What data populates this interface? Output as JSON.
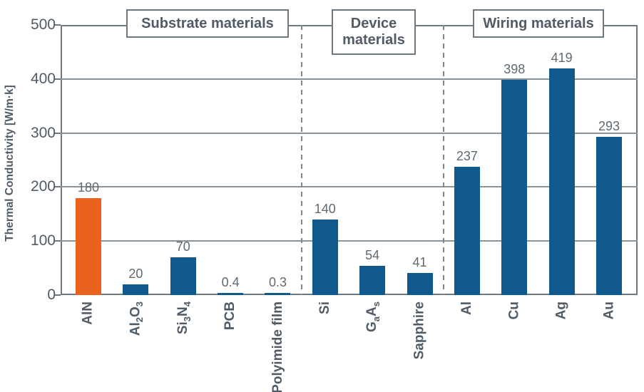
{
  "chart_data": {
    "type": "bar",
    "title": "",
    "ylabel": "Thermal Conductivity [W/m·k]",
    "xlabel": "",
    "ylim": [
      0,
      500
    ],
    "yticks": [
      "0",
      "100",
      "200",
      "300",
      "400",
      "500"
    ],
    "grid": "horizontal gridlines every 100",
    "legend": "none",
    "sections": [
      {
        "label": "Substrate materials",
        "bar_ids": [
          "aln",
          "al2o3",
          "si3n4",
          "pcb",
          "polyimide-film"
        ]
      },
      {
        "label": "Device materials",
        "bar_ids": [
          "si",
          "gaas",
          "sapphire"
        ]
      },
      {
        "label": "Wiring materials",
        "bar_ids": [
          "al",
          "cu",
          "ag",
          "au"
        ]
      }
    ],
    "bars": [
      {
        "id": "aln",
        "category": "AlN",
        "label_parts": [
          {
            "text": "AlN"
          }
        ],
        "value": 180,
        "value_label": "180",
        "color": "highlight"
      },
      {
        "id": "al2o3",
        "category": "Al2O3",
        "label_parts": [
          {
            "text": "Al"
          },
          {
            "text": "2",
            "sub": true
          },
          {
            "text": "O"
          },
          {
            "text": "3",
            "sub": true
          }
        ],
        "value": 20,
        "value_label": "20",
        "color": "normal"
      },
      {
        "id": "si3n4",
        "category": "Si3N4",
        "label_parts": [
          {
            "text": "Si"
          },
          {
            "text": "3",
            "sub": true
          },
          {
            "text": "N"
          },
          {
            "text": "4",
            "sub": true
          }
        ],
        "value": 70,
        "value_label": "70",
        "color": "normal"
      },
      {
        "id": "pcb",
        "category": "PCB",
        "label_parts": [
          {
            "text": "PCB"
          }
        ],
        "value": 0.4,
        "value_label": "0.4",
        "color": "normal"
      },
      {
        "id": "polyimide-film",
        "category": "Polyimide film",
        "label_parts": [
          {
            "text": "Polyimide film"
          }
        ],
        "value": 0.3,
        "value_label": "0.3",
        "color": "normal"
      },
      {
        "id": "si",
        "category": "Si",
        "label_parts": [
          {
            "text": "Si"
          }
        ],
        "value": 140,
        "value_label": "140",
        "color": "normal"
      },
      {
        "id": "gaas",
        "category": "GaAs",
        "label_parts": [
          {
            "text": "G"
          },
          {
            "text": "a",
            "sub": true
          },
          {
            "text": "A"
          },
          {
            "text": "s",
            "sub": true
          }
        ],
        "value": 54,
        "value_label": "54",
        "color": "normal"
      },
      {
        "id": "sapphire",
        "category": "Sapphire",
        "label_parts": [
          {
            "text": "Sapphire"
          }
        ],
        "value": 41,
        "value_label": "41",
        "color": "normal"
      },
      {
        "id": "al",
        "category": "Al",
        "label_parts": [
          {
            "text": "Al"
          }
        ],
        "value": 237,
        "value_label": "237",
        "color": "normal"
      },
      {
        "id": "cu",
        "category": "Cu",
        "label_parts": [
          {
            "text": "Cu"
          }
        ],
        "value": 398,
        "value_label": "398",
        "color": "normal"
      },
      {
        "id": "ag",
        "category": "Ag",
        "label_parts": [
          {
            "text": "Ag"
          }
        ],
        "value": 419,
        "value_label": "419",
        "color": "normal"
      },
      {
        "id": "au",
        "category": "Au",
        "label_parts": [
          {
            "text": "Au"
          }
        ],
        "value": 293,
        "value_label": "293",
        "color": "normal"
      }
    ],
    "colors": {
      "bar_normal": "#11588C",
      "bar_highlight": "#E9631D",
      "axis": "#6E7881",
      "gridline": "#8B939B",
      "dashed_separator": "#7E878F",
      "text": "#4F5B66",
      "value_label": "#5E6A73",
      "background": "#FFFFFF"
    }
  }
}
